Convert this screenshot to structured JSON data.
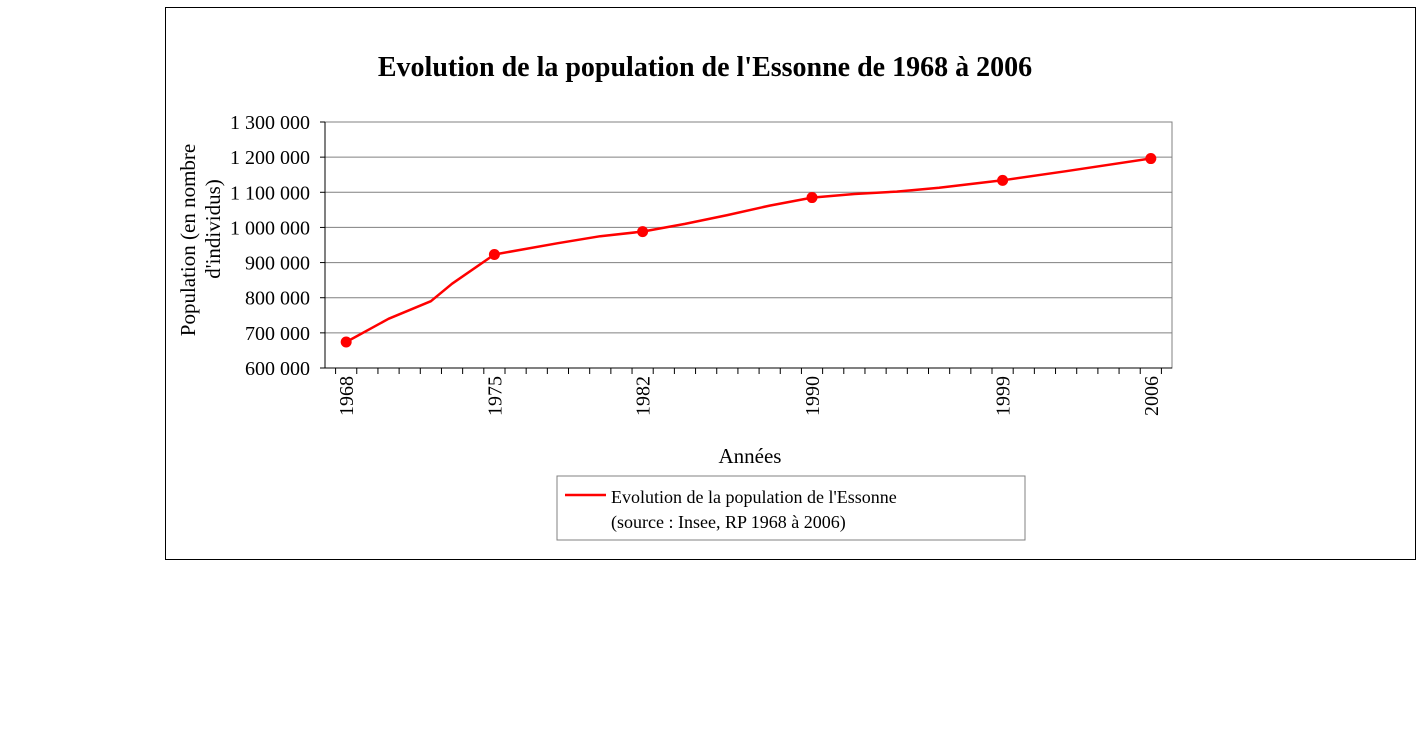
{
  "chart_data": {
    "type": "line",
    "title": "Evolution de la population de l'Essonne de 1968 à 2006",
    "xlabel": "Années",
    "ylabel": [
      "Population (en nombre",
      "d'individus)"
    ],
    "ylim": [
      600000,
      1300000
    ],
    "y_ticks": [
      600000,
      700000,
      800000,
      900000,
      1000000,
      1100000,
      1200000,
      1300000
    ],
    "y_tick_labels": [
      "600 000",
      "700 000",
      "800 000",
      "900 000",
      "1 000 000",
      "1 100 000",
      "1 200 000",
      "1 300 000"
    ],
    "x_range": [
      1967,
      2007
    ],
    "x_tick_labels": [
      "1968",
      "1975",
      "1982",
      "1990",
      "1999",
      "2006"
    ],
    "grid": true,
    "legend_position": "bottom",
    "series": [
      {
        "name": [
          "Evolution de la population de l'Essonne",
          "(source : Insee, RP 1968 à 2006)"
        ],
        "color": "#ff0000",
        "line": [
          {
            "x": 1968,
            "y": 674000
          },
          {
            "x": 1970,
            "y": 740000
          },
          {
            "x": 1972,
            "y": 790000
          },
          {
            "x": 1973,
            "y": 840000
          },
          {
            "x": 1975,
            "y": 923000
          },
          {
            "x": 1978,
            "y": 955000
          },
          {
            "x": 1980,
            "y": 975000
          },
          {
            "x": 1982,
            "y": 988000
          },
          {
            "x": 1984,
            "y": 1010000
          },
          {
            "x": 1986,
            "y": 1035000
          },
          {
            "x": 1988,
            "y": 1062000
          },
          {
            "x": 1990,
            "y": 1085000
          },
          {
            "x": 1992,
            "y": 1095000
          },
          {
            "x": 1994,
            "y": 1102000
          },
          {
            "x": 1996,
            "y": 1113000
          },
          {
            "x": 1999,
            "y": 1134000
          },
          {
            "x": 2002,
            "y": 1160000
          },
          {
            "x": 2006,
            "y": 1196000
          }
        ],
        "points": [
          {
            "x": 1968,
            "y": 674000
          },
          {
            "x": 1975,
            "y": 923000
          },
          {
            "x": 1982,
            "y": 988000
          },
          {
            "x": 1990,
            "y": 1085000
          },
          {
            "x": 1999,
            "y": 1134000
          },
          {
            "x": 2006,
            "y": 1196000
          }
        ]
      }
    ]
  }
}
